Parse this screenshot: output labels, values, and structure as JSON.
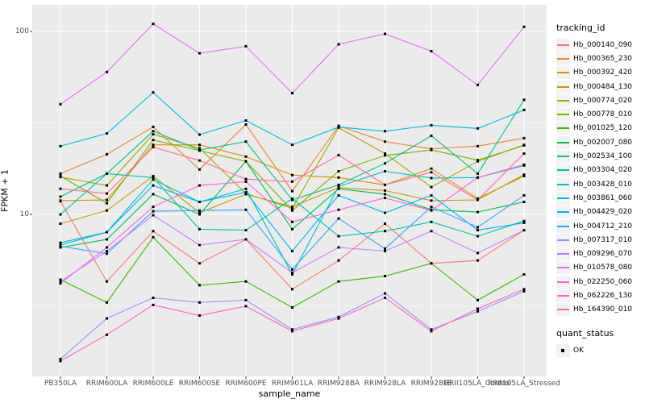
{
  "panel": {
    "bg": "#EBEBEB",
    "grid_color": "#FFFFFF",
    "tick_color": "#333333",
    "tick_text_color": "#4D4D4D"
  },
  "axes": {
    "y_tick_labels": [
      "100",
      "10"
    ],
    "y_tick_values": [
      100,
      10
    ],
    "y_minor_values": [
      31.623,
      3.1623
    ],
    "x_tick_labels": [
      "PB350LA",
      "RRIM600LA",
      "RRIM600LE",
      "RRIM600SE",
      "RRIM600PE",
      "RRIM901LA",
      "RRIM928BA",
      "RRIM928LA",
      "RRIM928LE",
      "RRII105LA_Control",
      "RRII105LA_Stressed"
    ]
  },
  "legend": {
    "tracking_title": "tracking_id",
    "quant_title": "quant_status",
    "quant_items": [
      {
        "label": "OK",
        "marker": "black-square"
      }
    ]
  },
  "chart_data": {
    "type": "line",
    "title": "",
    "xlabel": "sample_name",
    "ylabel": "FPKM + 1",
    "y_scale": "log10",
    "ylim": [
      1.3,
      140
    ],
    "grid": "on",
    "legend_position": "right",
    "point_marker": "black-square",
    "categories": [
      "PB350LA",
      "RRIM600LA",
      "RRIM600LE",
      "RRIM600SE",
      "RRIM600PE",
      "RRIM901LA",
      "RRIM928BA",
      "RRIM928LA",
      "RRIM928LE",
      "RRII105LA_Control",
      "RRII105LA_Stressed"
    ],
    "series": [
      {
        "name": "Hb_000140_090",
        "color": "#F8766D",
        "values": [
          11.8,
          4.3,
          8.1,
          5.4,
          7.3,
          3.9,
          5.6,
          8.9,
          5.4,
          5.6,
          8.2
        ]
      },
      {
        "name": "Hb_000365_230",
        "color": "#EA8331",
        "values": [
          16.7,
          21.3,
          30.1,
          17.6,
          31.0,
          13.4,
          30.5,
          25.0,
          22.8,
          23.6,
          26.1
        ]
      },
      {
        "name": "Hb_000392_420",
        "color": "#D89000",
        "values": [
          11.9,
          12.0,
          24.0,
          24.0,
          20.7,
          16.4,
          15.9,
          14.5,
          17.8,
          12.2,
          16.2
        ]
      },
      {
        "name": "Hb_000484_130",
        "color": "#C09B00",
        "values": [
          8.9,
          10.5,
          16.2,
          10.2,
          12.9,
          11.0,
          14.0,
          13.5,
          11.9,
          12.0,
          16.5
        ]
      },
      {
        "name": "Hb_000774_020",
        "color": "#A3A500",
        "values": [
          16.0,
          14.4,
          27.4,
          23.0,
          13.0,
          10.8,
          29.8,
          21.5,
          14.1,
          19.5,
          24.0
        ]
      },
      {
        "name": "Hb_000778_010",
        "color": "#7CAE00",
        "values": [
          16.2,
          11.5,
          25.5,
          22.3,
          19.5,
          10.5,
          17.2,
          21.0,
          22.5,
          19.8,
          23.8
        ]
      },
      {
        "name": "Hb_001025_120",
        "color": "#39B600",
        "values": [
          4.4,
          3.3,
          7.5,
          4.1,
          4.3,
          3.1,
          4.3,
          4.6,
          5.4,
          3.4,
          4.7
        ]
      },
      {
        "name": "Hb_002007_080",
        "color": "#00BB4E",
        "values": [
          6.6,
          7.3,
          12.9,
          10.0,
          19.5,
          8.3,
          13.8,
          12.9,
          10.6,
          10.3,
          11.7
        ]
      },
      {
        "name": "Hb_002534_100",
        "color": "#00BF7D",
        "values": [
          12.5,
          16.7,
          28.5,
          22.5,
          25.0,
          12.0,
          14.5,
          19.0,
          26.9,
          16.7,
          42.3
        ]
      },
      {
        "name": "Hb_003304_020",
        "color": "#00C1A3",
        "values": [
          10.0,
          16.7,
          15.9,
          8.3,
          8.2,
          12.2,
          7.6,
          8.1,
          9.1,
          7.6,
          9.2
        ]
      },
      {
        "name": "Hb_003428_010",
        "color": "#00BFC4",
        "values": [
          7.0,
          8.0,
          15.5,
          11.7,
          13.8,
          4.7,
          14.2,
          17.2,
          15.8,
          15.9,
          18.5
        ]
      },
      {
        "name": "Hb_003861_060",
        "color": "#00BAE0",
        "values": [
          23.6,
          27.7,
          46.4,
          27.3,
          32.6,
          24.0,
          30.0,
          28.5,
          30.7,
          29.5,
          37.2
        ]
      },
      {
        "name": "Hb_004429_020",
        "color": "#00B0F6",
        "values": [
          6.8,
          8.0,
          14.4,
          11.7,
          13.2,
          6.3,
          12.7,
          10.2,
          12.7,
          8.2,
          9.0
        ]
      },
      {
        "name": "Hb_004712_210",
        "color": "#35A2FF",
        "values": [
          6.7,
          6.1,
          10.4,
          10.5,
          10.6,
          5.0,
          9.5,
          6.5,
          11.0,
          8.5,
          12.7
        ]
      },
      {
        "name": "Hb_007317_010",
        "color": "#9590FF",
        "values": [
          1.62,
          2.7,
          3.5,
          3.3,
          3.4,
          2.35,
          2.75,
          3.7,
          2.35,
          2.95,
          3.8
        ]
      },
      {
        "name": "Hb_009296_070",
        "color": "#C77CFF",
        "values": [
          4.3,
          6.3,
          9.9,
          6.8,
          7.3,
          4.8,
          6.6,
          6.3,
          8.1,
          6.15,
          8.2
        ]
      },
      {
        "name": "Hb_010578_080",
        "color": "#E76BF3",
        "values": [
          40,
          60,
          110,
          76,
          83,
          46,
          85,
          97,
          78,
          51,
          106
        ]
      },
      {
        "name": "Hb_022250_060",
        "color": "#FA62DB",
        "values": [
          4.2,
          6.6,
          11.0,
          14.4,
          15.1,
          9.1,
          10.6,
          12.3,
          10.5,
          15.9,
          18.7
        ]
      },
      {
        "name": "Hb_062226_130",
        "color": "#FF62BC",
        "values": [
          1.58,
          2.2,
          3.2,
          2.8,
          3.15,
          2.3,
          2.7,
          3.5,
          2.3,
          3.05,
          3.9
        ]
      },
      {
        "name": "Hb_164390_010",
        "color": "#FF6A98",
        "values": [
          13.8,
          13.0,
          23.3,
          19.7,
          15.6,
          15.1,
          21.1,
          14.5,
          17.0,
          12.0,
          21.5
        ]
      }
    ]
  }
}
